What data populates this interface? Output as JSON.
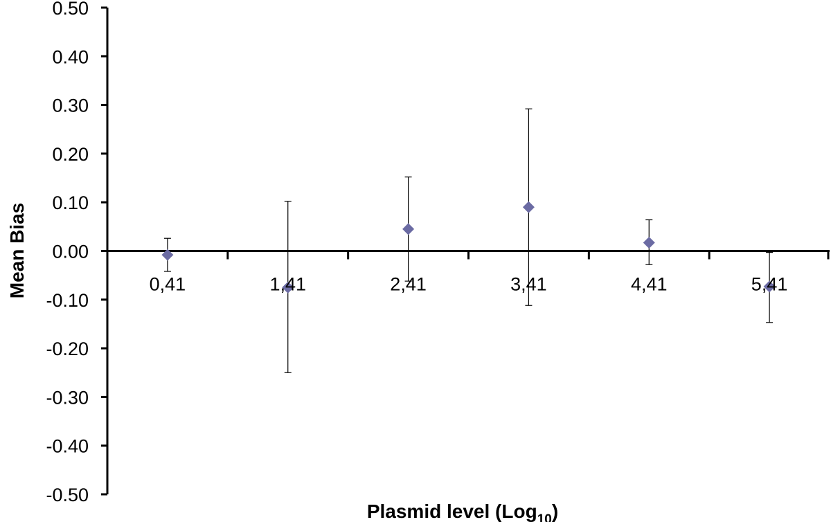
{
  "chart_data": {
    "type": "scatter",
    "title": "",
    "xlabel": "Plasmid level (Log",
    "xlabel_sub": "10",
    "xlabel_suffix": ")",
    "ylabel": "Mean Bias",
    "ylim": [
      -0.5,
      0.5
    ],
    "y_ticks": [
      "0.50",
      "0.40",
      "0.30",
      "0.20",
      "0.10",
      "0.00",
      "-0.10",
      "-0.20",
      "-0.30",
      "-0.40",
      "-0.50"
    ],
    "y_tick_values": [
      0.5,
      0.4,
      0.3,
      0.2,
      0.1,
      0.0,
      -0.1,
      -0.2,
      -0.3,
      -0.4,
      -0.5
    ],
    "categories": [
      "0,41",
      "1,41",
      "2,41",
      "3,41",
      "4,41",
      "5,41"
    ],
    "marker_color": "#6b6ba3",
    "series": [
      {
        "values": [
          -0.008,
          -0.075,
          0.045,
          0.09,
          0.017,
          -0.073
        ],
        "err_upper": [
          0.026,
          0.102,
          0.152,
          0.292,
          0.064,
          -0.003
        ],
        "err_lower": [
          -0.042,
          -0.25,
          -0.062,
          -0.112,
          -0.028,
          -0.147
        ]
      }
    ]
  }
}
